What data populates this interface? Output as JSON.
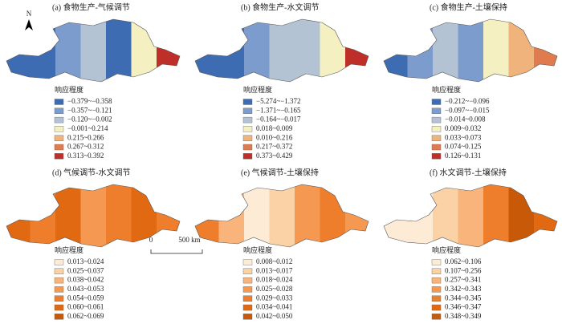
{
  "panels": [
    {
      "title": "(a) 食物生产-气候调节",
      "legend_title": "响应程度",
      "legend": [
        {
          "label": "−0.379~−0.358",
          "color": "#3d6cb3"
        },
        {
          "label": "−0.357~−0.121",
          "color": "#7b9ccc"
        },
        {
          "label": "−0.120~−0.002",
          "color": "#b4c3d3"
        },
        {
          "label": "−0.001~0.214",
          "color": "#f4f0c2"
        },
        {
          "label": "0.215~0.266",
          "color": "#f1b37c"
        },
        {
          "label": "0.267~0.312",
          "color": "#e07a4f"
        },
        {
          "label": "0.313~0.392",
          "color": "#be2f2a"
        }
      ]
    },
    {
      "title": "(b) 食物生产-水文调节",
      "legend_title": "响应程度",
      "legend": [
        {
          "label": "−5.274~−1.372",
          "color": "#3d6cb3"
        },
        {
          "label": "−1.371~−0.165",
          "color": "#7b9ccc"
        },
        {
          "label": "−0.164~−0.017",
          "color": "#b4c3d3"
        },
        {
          "label": "0.018~0.009",
          "color": "#f4f0c2"
        },
        {
          "label": "0.010~0.216",
          "color": "#f1b37c"
        },
        {
          "label": "0.217~0.372",
          "color": "#e07a4f"
        },
        {
          "label": "0.373~0.429",
          "color": "#be2f2a"
        }
      ]
    },
    {
      "title": "(c) 食物生产-土壤保持",
      "legend_title": "响应程度",
      "legend": [
        {
          "label": "−0.212~−0.096",
          "color": "#3d6cb3"
        },
        {
          "label": "−0.097~−0.015",
          "color": "#7b9ccc"
        },
        {
          "label": "−0.014~0.008",
          "color": "#b4c3d3"
        },
        {
          "label": "0.009~0.032",
          "color": "#f4f0c2"
        },
        {
          "label": "0.033~0.073",
          "color": "#f1b37c"
        },
        {
          "label": "0.074~0.125",
          "color": "#e07a4f"
        },
        {
          "label": "0.126~0.131",
          "color": "#be2f2a"
        }
      ]
    },
    {
      "title": "(d) 气候调节-水文调节",
      "legend_title": "响应程度",
      "legend": [
        {
          "label": "0.013~0.024",
          "color": "#fdebd6"
        },
        {
          "label": "0.025~0.037",
          "color": "#fbd1a6"
        },
        {
          "label": "0.038~0.042",
          "color": "#f8b47a"
        },
        {
          "label": "0.043~0.053",
          "color": "#f59952"
        },
        {
          "label": "0.054~0.059",
          "color": "#ee7e2c"
        },
        {
          "label": "0.060~0.061",
          "color": "#e06912"
        },
        {
          "label": "0.062~0.069",
          "color": "#c85908"
        }
      ]
    },
    {
      "title": "(e) 气候调节-土壤保持",
      "legend_title": "响应程度",
      "legend": [
        {
          "label": "0.008~0.012",
          "color": "#fdebd6"
        },
        {
          "label": "0.013~0.017",
          "color": "#fbd1a6"
        },
        {
          "label": "0.018~0.024",
          "color": "#f8b47a"
        },
        {
          "label": "0.025~0.028",
          "color": "#f59952"
        },
        {
          "label": "0.029~0.033",
          "color": "#ee7e2c"
        },
        {
          "label": "0.034~0.041",
          "color": "#e06912"
        },
        {
          "label": "0.042~0.050",
          "color": "#c85908"
        }
      ]
    },
    {
      "title": "(f) 水文调节-土壤保持",
      "legend_title": "响应程度",
      "legend": [
        {
          "label": "0.062~0.106",
          "color": "#fdebd6"
        },
        {
          "label": "0.107~0.256",
          "color": "#fbd1a6"
        },
        {
          "label": "0.257~0.341",
          "color": "#f8b47a"
        },
        {
          "label": "0.342~0.343",
          "color": "#f59952"
        },
        {
          "label": "0.344~0.345",
          "color": "#ee7e2c"
        },
        {
          "label": "0.346~0.347",
          "color": "#e06912"
        },
        {
          "label": "0.348~0.349",
          "color": "#c85908"
        }
      ]
    }
  ],
  "north_label": "N",
  "scale_bar": {
    "start": "0",
    "end": "500 km"
  }
}
